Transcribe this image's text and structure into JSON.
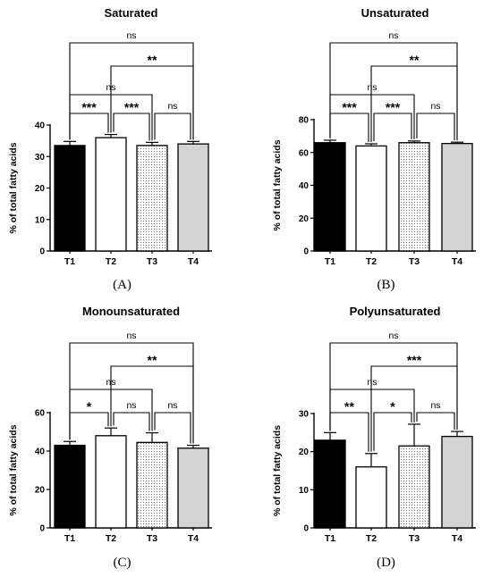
{
  "chart_data": [
    {
      "type": "bar",
      "title": "Saturated",
      "panel_label": "(A)",
      "ylabel": "% of total fatty acids",
      "ylim": [
        0,
        40
      ],
      "yticks": [
        0,
        10,
        20,
        30,
        40
      ],
      "categories": [
        "T1",
        "T2",
        "T3",
        "T4"
      ],
      "values": [
        33.5,
        36,
        33.5,
        34
      ],
      "errors": [
        1.3,
        1.0,
        1.0,
        0.8
      ],
      "comparisons": [
        {
          "from": "T1",
          "to": "T4",
          "label": "ns"
        },
        {
          "from": "T2",
          "to": "T4",
          "label": "**"
        },
        {
          "from": "T1",
          "to": "T3",
          "label": "ns"
        },
        {
          "from": "T1",
          "to": "T2",
          "label": "***"
        },
        {
          "from": "T2",
          "to": "T3",
          "label": "***"
        },
        {
          "from": "T3",
          "to": "T4",
          "label": "ns"
        }
      ]
    },
    {
      "type": "bar",
      "title": "Unsaturated",
      "panel_label": "(B)",
      "ylabel": "% of total fatty acids",
      "ylim": [
        0,
        80
      ],
      "yticks": [
        0,
        20,
        40,
        60,
        80
      ],
      "categories": [
        "T1",
        "T2",
        "T3",
        "T4"
      ],
      "values": [
        66,
        64,
        66,
        65.5
      ],
      "errors": [
        1.5,
        1.3,
        1.0,
        0.8
      ],
      "comparisons": [
        {
          "from": "T1",
          "to": "T4",
          "label": "ns"
        },
        {
          "from": "T2",
          "to": "T4",
          "label": "**"
        },
        {
          "from": "T1",
          "to": "T3",
          "label": "ns"
        },
        {
          "from": "T1",
          "to": "T2",
          "label": "***"
        },
        {
          "from": "T2",
          "to": "T3",
          "label": "***"
        },
        {
          "from": "T3",
          "to": "T4",
          "label": "ns"
        }
      ]
    },
    {
      "type": "bar",
      "title": "Monounsaturated",
      "panel_label": "(C)",
      "ylabel": "% of total fatty acids",
      "ylim": [
        0,
        60
      ],
      "yticks": [
        0,
        20,
        40,
        60
      ],
      "categories": [
        "T1",
        "T2",
        "T3",
        "T4"
      ],
      "values": [
        43,
        48,
        44.5,
        41.5
      ],
      "errors": [
        2.0,
        4.0,
        5.0,
        1.5
      ],
      "comparisons": [
        {
          "from": "T1",
          "to": "T4",
          "label": "ns"
        },
        {
          "from": "T2",
          "to": "T4",
          "label": "**"
        },
        {
          "from": "T1",
          "to": "T3",
          "label": "ns"
        },
        {
          "from": "T1",
          "to": "T2",
          "label": "*"
        },
        {
          "from": "T2",
          "to": "T3",
          "label": "ns"
        },
        {
          "from": "T3",
          "to": "T4",
          "label": "ns"
        }
      ]
    },
    {
      "type": "bar",
      "title": "Polyunsaturated",
      "panel_label": "(D)",
      "ylabel": "% of total fatty acids",
      "ylim": [
        0,
        30
      ],
      "yticks": [
        0,
        10,
        20,
        30
      ],
      "categories": [
        "T1",
        "T2",
        "T3",
        "T4"
      ],
      "values": [
        23,
        16,
        21.5,
        24
      ],
      "errors": [
        2.0,
        3.5,
        5.7,
        1.3
      ],
      "comparisons": [
        {
          "from": "T1",
          "to": "T4",
          "label": "ns"
        },
        {
          "from": "T2",
          "to": "T4",
          "label": "***"
        },
        {
          "from": "T1",
          "to": "T3",
          "label": "ns"
        },
        {
          "from": "T1",
          "to": "T2",
          "label": "**"
        },
        {
          "from": "T2",
          "to": "T3",
          "label": "*"
        },
        {
          "from": "T3",
          "to": "T4",
          "label": "ns"
        }
      ]
    }
  ],
  "style": {
    "bar_fills": [
      "#000000",
      "#ffffff",
      "dots",
      "#d4d4d4"
    ],
    "axis_color": "#000000",
    "grid": false
  }
}
